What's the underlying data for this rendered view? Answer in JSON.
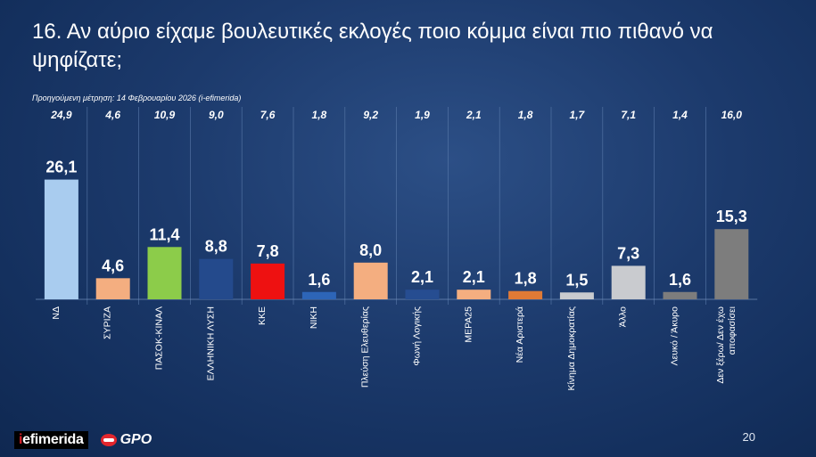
{
  "title": "16. Αν αύριο είχαμε βουλευτικές εκλογές ποιο κόμμα είναι πιο πιθανό να ψηφίζατε;",
  "subtitle": "Προηγούμενη μέτρηση: 14 Φεβρουαρίου 2026 (i-efimerida)",
  "footer": {
    "logo_text_i": "i",
    "logo_text_rest": "efimerida",
    "logo_gpo": "GPO",
    "page_number": "20"
  },
  "chart_data": {
    "type": "bar",
    "categories": [
      "ΝΔ",
      "ΣΥΡΙΖΑ",
      "ΠΑΣΟΚ-ΚΙΝΑΛ",
      "ΕΛΛΗΝΙΚΗ ΛΥΣΗ",
      "ΚΚΕ",
      "ΝΙΚΗ",
      "Πλεύση Ελευθερίας",
      "Φωνή Λογικής",
      "ΜΕΡΑ25",
      "Νέα Αριστερά",
      "Κίνημα Δημοκρατίας",
      "Άλλο",
      "Λευκό / Άκυρο",
      "Δεν ξέρω/ Δεν έχω αποφασίσει"
    ],
    "values": [
      26.1,
      4.6,
      11.4,
      8.8,
      7.8,
      1.6,
      8.0,
      2.1,
      2.1,
      1.8,
      1.5,
      7.3,
      1.6,
      15.3
    ],
    "value_labels": [
      "26,1",
      "4,6",
      "11,4",
      "8,8",
      "7,8",
      "1,6",
      "8,0",
      "2,1",
      "2,1",
      "1,8",
      "1,5",
      "7,3",
      "1,6",
      "15,3"
    ],
    "previous_labels": [
      "24,9",
      "4,6",
      "10,9",
      "9,0",
      "7,6",
      "1,8",
      "9,2",
      "1,9",
      "2,1",
      "1,8",
      "1,7",
      "7,1",
      "1,4",
      "16,0"
    ],
    "colors": [
      "#a9ccef",
      "#f4ae80",
      "#8ccc4a",
      "#244a8c",
      "#ee1111",
      "#2d65b8",
      "#f4ae80",
      "#264d91",
      "#f4ae80",
      "#e07a36",
      "#c9cbcf",
      "#c9cbcf",
      "#7d7d7d",
      "#7d7d7d"
    ],
    "ylim": [
      0,
      30
    ],
    "grid": "vertical separators"
  }
}
